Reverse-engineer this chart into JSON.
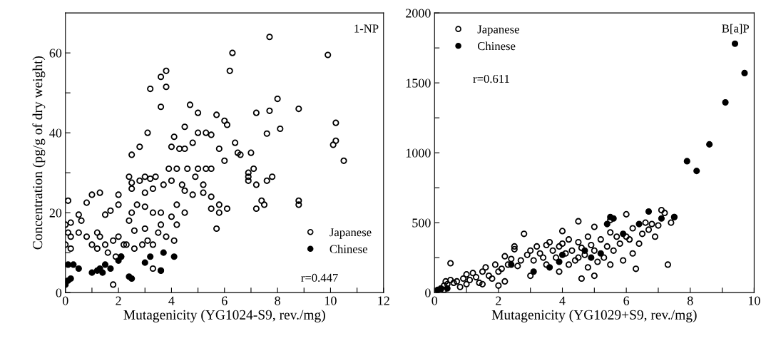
{
  "chart_data": [
    {
      "type": "scatter",
      "xlabel": "Mutagenicity (YG1024-S9, rev./mg)",
      "ylabel": "Concentration (pg/g of dry weight)",
      "annotations": [
        "1-NP",
        "r=0.447"
      ],
      "xlim": [
        0,
        12
      ],
      "ylim": [
        0,
        70
      ],
      "xticks": [
        0,
        {
          "value": 1,
          "label": null
        },
        2,
        {
          "value": 3,
          "label": null
        },
        4,
        {
          "value": 5,
          "label": null
        },
        6,
        {
          "value": 7,
          "label": null
        },
        8,
        {
          "value": 9,
          "label": null
        },
        10,
        {
          "value": 11,
          "label": null
        },
        12
      ],
      "yticks": [
        0,
        {
          "value": 10,
          "label": null
        },
        20,
        {
          "value": 30,
          "label": null
        },
        40,
        {
          "value": 50,
          "label": null
        },
        60
      ],
      "legend": "bottom right",
      "grid": false,
      "series": [
        {
          "name": "Japanese",
          "color": "#000000",
          "marker": "circle",
          "x": [
            7.7,
            9.9,
            6.3,
            6.2,
            3.8,
            3.6,
            3.2,
            3.8,
            3.6,
            4.7,
            5.0,
            7.2,
            7.7,
            8.0,
            8.8,
            10.2,
            10.1,
            10.2,
            10.5,
            8.1,
            7.6,
            6.0,
            6.1,
            5.7,
            5.3,
            5.5,
            5.0,
            4.5,
            4.1,
            3.1,
            2.5,
            2.8,
            4.3,
            4.0,
            4.8,
            4.5,
            5.8,
            6.0,
            6.4,
            6.5,
            6.6,
            7.0,
            7.1,
            6.9,
            6.9,
            6.9,
            7.2,
            7.5,
            7.4,
            7.6,
            7.8,
            8.8,
            8.8,
            7.2,
            5.5,
            5.3,
            5.0,
            4.6,
            4.2,
            3.9,
            3.0,
            2.4,
            2.5,
            2.5,
            2.8,
            3.2,
            3.4,
            3.0,
            3.3,
            3.7,
            4.0,
            4.4,
            4.5,
            4.8,
            5.2,
            5.5,
            5.2,
            4.9,
            5.8,
            5.8,
            5.7,
            6.1,
            5.5,
            4.2,
            4.0,
            3.6,
            3.3,
            3.0,
            2.7,
            2.5,
            2.4,
            2.6,
            2.0,
            2.0,
            1.7,
            1.5,
            1.3,
            1.0,
            0.8,
            0.1,
            0.5,
            0.6,
            0.2,
            0.0,
            0.1,
            0.2,
            0.0,
            0.2,
            0.5,
            0.8,
            1.0,
            1.2,
            1.3,
            1.5,
            1.8,
            2.0,
            2.2,
            1.6,
            1.2,
            1.9,
            2.1,
            2.3,
            2.6,
            2.9,
            3.1,
            3.3,
            3.5,
            3.6,
            3.8,
            4.1,
            4.2,
            4.5,
            3.0,
            3.3,
            3.6,
            1.8
          ],
          "values": [
            64,
            59.5,
            60,
            55.5,
            55.5,
            54,
            51,
            51.5,
            46.5,
            47,
            45,
            45,
            45.5,
            48.5,
            46,
            42.5,
            37,
            38,
            33,
            41,
            39.8,
            43,
            42,
            44.5,
            40,
            39.5,
            40,
            41.5,
            39,
            40,
            34.5,
            36.5,
            36,
            36.5,
            37.5,
            36,
            36,
            33,
            37.5,
            35,
            34.5,
            35,
            31,
            30,
            28,
            29,
            27,
            22,
            23,
            28,
            29,
            23,
            22,
            21,
            31,
            31,
            31,
            31,
            31,
            31,
            29,
            29,
            27.5,
            26,
            28,
            28.5,
            29,
            25,
            26,
            27,
            28,
            27,
            25.5,
            24.5,
            25,
            24,
            27,
            29,
            22,
            20,
            16,
            21,
            21,
            22,
            19,
            20,
            20,
            21.5,
            22,
            20,
            18,
            15.5,
            24.5,
            22,
            20.5,
            19.5,
            25,
            24.5,
            22.5,
            23,
            19.5,
            18,
            17.5,
            17,
            15,
            14,
            12,
            11,
            15,
            14,
            12,
            15,
            14,
            12,
            13,
            14,
            12,
            10,
            11,
            9,
            9,
            12,
            11,
            12,
            13,
            12,
            15,
            17,
            14,
            13,
            17,
            20,
            16,
            6,
            5.5,
            2
          ]
        },
        {
          "name": "Chinese",
          "color": "#000000",
          "marker": "circle",
          "x": [
            0.0,
            0.1,
            0.2,
            0.1,
            0.3,
            0.5,
            1.0,
            1.2,
            1.3,
            1.5,
            1.7,
            1.4,
            2.0,
            2.4,
            2.5,
            2.1,
            3.0,
            3.2,
            3.7,
            4.1,
            3.6
          ],
          "values": [
            2,
            3,
            3.5,
            7,
            7,
            6,
            5,
            5.5,
            6,
            7,
            6,
            5,
            8,
            4,
            3.5,
            9,
            7.5,
            9,
            10,
            9,
            5.5
          ]
        }
      ]
    },
    {
      "type": "scatter",
      "xlabel": "Mutagenicity (YG1029+S9, rev./mg)",
      "annotations": [
        "B[a]P",
        "r=0.611"
      ],
      "xlim": [
        0,
        10
      ],
      "ylim": [
        0,
        2000
      ],
      "xticks": [
        0,
        {
          "value": 1,
          "label": null
        },
        2,
        {
          "value": 3,
          "label": null
        },
        4,
        {
          "value": 5,
          "label": null
        },
        6,
        {
          "value": 7,
          "label": null
        },
        8,
        {
          "value": 9,
          "label": null
        },
        10
      ],
      "yticks": [
        0,
        {
          "value": 250,
          "label": null
        },
        500,
        {
          "value": 750,
          "label": null
        },
        1000,
        {
          "value": 1250,
          "label": null
        },
        1500,
        {
          "value": 1750,
          "label": null
        },
        2000
      ],
      "legend": "top left",
      "grid": false,
      "series": [
        {
          "name": "Japanese",
          "color": "#000000",
          "marker": "circle",
          "x": [
            0.2,
            0.3,
            0.35,
            0.4,
            0.5,
            0.5,
            0.6,
            0.7,
            0.8,
            0.9,
            1.0,
            1.0,
            1.1,
            1.2,
            1.3,
            1.4,
            1.5,
            1.6,
            1.7,
            1.8,
            1.9,
            2.0,
            2.1,
            2.2,
            2.3,
            2.4,
            2.5,
            2.5,
            2.6,
            2.7,
            2.8,
            2.9,
            3.0,
            3.1,
            3.2,
            3.3,
            3.4,
            3.5,
            3.5,
            3.6,
            3.7,
            3.8,
            3.9,
            4.0,
            4.0,
            4.1,
            4.2,
            4.2,
            4.3,
            4.4,
            4.5,
            4.5,
            4.6,
            4.7,
            4.8,
            4.8,
            4.9,
            5.0,
            5.0,
            5.1,
            5.2,
            5.3,
            5.4,
            5.5,
            5.5,
            5.6,
            5.7,
            5.8,
            5.9,
            6.0,
            6.1,
            6.2,
            6.2,
            6.3,
            6.4,
            6.5,
            6.6,
            6.7,
            6.8,
            6.9,
            7.0,
            7.1,
            7.2,
            7.3,
            7.4,
            7.5,
            5.0,
            4.6,
            3.9,
            2.2,
            1.5,
            0.3,
            6.0,
            5.5,
            4.5,
            3.0,
            2.0
          ],
          "values": [
            30,
            50,
            80,
            60,
            90,
            210,
            70,
            80,
            40,
            100,
            130,
            60,
            90,
            140,
            110,
            70,
            150,
            180,
            120,
            100,
            200,
            150,
            170,
            260,
            200,
            240,
            330,
            310,
            190,
            230,
            420,
            270,
            300,
            230,
            330,
            280,
            250,
            340,
            200,
            360,
            300,
            250,
            330,
            440,
            350,
            280,
            380,
            200,
            300,
            230,
            360,
            250,
            320,
            270,
            400,
            180,
            340,
            470,
            300,
            220,
            380,
            250,
            330,
            200,
            430,
            300,
            400,
            350,
            230,
            400,
            380,
            460,
            280,
            170,
            350,
            420,
            500,
            450,
            490,
            400,
            480,
            590,
            570,
            200,
            500,
            540,
            120,
            100,
            150,
            80,
            60,
            20,
            560,
            520,
            510,
            120,
            50
          ]
        },
        {
          "name": "Chinese",
          "color": "#000000",
          "marker": "circle",
          "x": [
            0.1,
            0.2,
            0.4,
            2.4,
            3.1,
            3.6,
            3.9,
            4.0,
            4.7,
            4.9,
            5.2,
            5.4,
            5.5,
            5.6,
            5.9,
            6.4,
            6.7,
            7.1,
            7.5,
            7.9,
            8.2,
            8.6,
            9.1,
            9.4,
            9.7
          ],
          "values": [
            20,
            25,
            30,
            200,
            150,
            180,
            220,
            270,
            300,
            250,
            280,
            490,
            540,
            530,
            420,
            490,
            580,
            530,
            540,
            940,
            870,
            1060,
            1360,
            1780,
            1570
          ]
        }
      ]
    }
  ]
}
